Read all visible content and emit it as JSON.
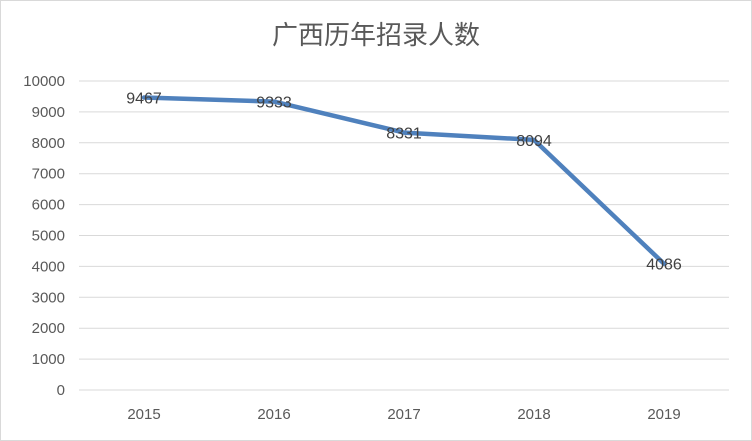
{
  "chart_data": {
    "type": "line",
    "title": "广西历年招录人数",
    "xlabel": "",
    "ylabel": "",
    "categories": [
      "2015",
      "2016",
      "2017",
      "2018",
      "2019"
    ],
    "series": [
      {
        "values": [
          9467,
          9333,
          8331,
          8094,
          4086
        ]
      }
    ],
    "data_labels": [
      "9467",
      "9333",
      "8331",
      "8094",
      "4086"
    ],
    "ylim": [
      0,
      10000
    ],
    "yticks": [
      "0",
      "1000",
      "2000",
      "3000",
      "4000",
      "5000",
      "6000",
      "7000",
      "8000",
      "9000",
      "10000"
    ],
    "grid": true,
    "legend": "none",
    "line_color": "#4f81bd",
    "grid_color": "#d9d9d9"
  }
}
